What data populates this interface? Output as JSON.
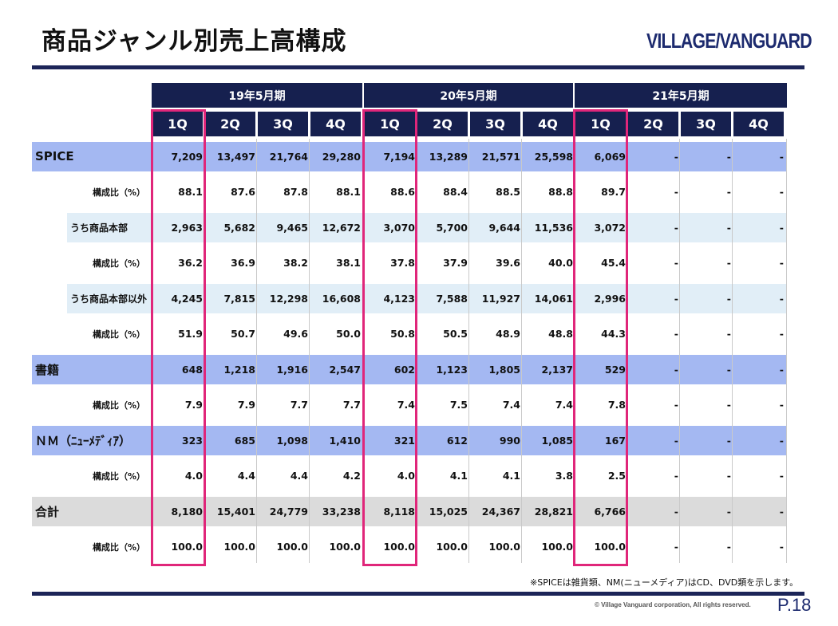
{
  "title": "商品ジャンル別売上高構成",
  "logo": "VILLAGE/VANGUARD",
  "footnote": "※SPICEは雑貨類、NM(ニューメディア)はCD、DVD類を示します。",
  "copyright": "© Village Vanguard corporation, All rights reserved.",
  "page_number": "P.18",
  "table": {
    "years": [
      "19年5月期",
      "20年5月期",
      "21年5月期"
    ],
    "quarters": [
      "1Q",
      "2Q",
      "3Q",
      "4Q",
      "1Q",
      "2Q",
      "3Q",
      "4Q",
      "1Q",
      "2Q",
      "3Q",
      "4Q"
    ],
    "rows": [
      {
        "label": "SPICE",
        "kind": "main",
        "values": [
          "7,209",
          "13,497",
          "21,764",
          "29,280",
          "7,194",
          "13,289",
          "21,571",
          "25,598",
          "6,069",
          "-",
          "-",
          "-"
        ]
      },
      {
        "label": "構成比（%）",
        "kind": "ratio",
        "values": [
          "88.1",
          "87.6",
          "87.8",
          "88.1",
          "88.6",
          "88.4",
          "88.5",
          "88.8",
          "89.7",
          "-",
          "-",
          "-"
        ]
      },
      {
        "label": "うち商品本部",
        "kind": "sub",
        "values": [
          "2,963",
          "5,682",
          "9,465",
          "12,672",
          "3,070",
          "5,700",
          "9,644",
          "11,536",
          "3,072",
          "-",
          "-",
          "-"
        ]
      },
      {
        "label": "構成比（%）",
        "kind": "ratio",
        "values": [
          "36.2",
          "36.9",
          "38.2",
          "38.1",
          "37.8",
          "37.9",
          "39.6",
          "40.0",
          "45.4",
          "-",
          "-",
          "-"
        ]
      },
      {
        "label": "うち商品本部以外",
        "kind": "sub",
        "values": [
          "4,245",
          "7,815",
          "12,298",
          "16,608",
          "4,123",
          "7,588",
          "11,927",
          "14,061",
          "2,996",
          "-",
          "-",
          "-"
        ]
      },
      {
        "label": "構成比（%）",
        "kind": "ratio",
        "values": [
          "51.9",
          "50.7",
          "49.6",
          "50.0",
          "50.8",
          "50.5",
          "48.9",
          "48.8",
          "44.3",
          "-",
          "-",
          "-"
        ]
      },
      {
        "label": "書籍",
        "kind": "main",
        "values": [
          "648",
          "1,218",
          "1,916",
          "2,547",
          "602",
          "1,123",
          "1,805",
          "2,137",
          "529",
          "-",
          "-",
          "-"
        ]
      },
      {
        "label": "構成比（%）",
        "kind": "ratio",
        "values": [
          "7.9",
          "7.9",
          "7.7",
          "7.7",
          "7.4",
          "7.5",
          "7.4",
          "7.4",
          "7.8",
          "-",
          "-",
          "-"
        ]
      },
      {
        "label": "ＮＭ（ﾆｭｰﾒﾃﾞｨｱ）",
        "kind": "main",
        "values": [
          "323",
          "685",
          "1,098",
          "1,410",
          "321",
          "612",
          "990",
          "1,085",
          "167",
          "-",
          "-",
          "-"
        ]
      },
      {
        "label": "構成比（%）",
        "kind": "ratio",
        "values": [
          "4.0",
          "4.4",
          "4.4",
          "4.2",
          "4.0",
          "4.1",
          "4.1",
          "3.8",
          "2.5",
          "-",
          "-",
          "-"
        ]
      },
      {
        "label": "合計",
        "kind": "total",
        "values": [
          "8,180",
          "15,401",
          "24,779",
          "33,238",
          "8,118",
          "15,025",
          "24,367",
          "28,821",
          "6,766",
          "-",
          "-",
          "-"
        ]
      },
      {
        "label": "構成比（%）",
        "kind": "ratio",
        "values": [
          "100.0",
          "100.0",
          "100.0",
          "100.0",
          "100.0",
          "100.0",
          "100.0",
          "100.0",
          "100.0",
          "-",
          "-",
          "-"
        ]
      }
    ]
  },
  "colors": {
    "header_bg": "#16204f",
    "main_row_bg": "#a4b8f2",
    "sub_row_bg": "#e1eef7",
    "total_row_bg": "#dbdbdb",
    "highlight_border": "#e0267a",
    "rule": "#1c2558"
  }
}
